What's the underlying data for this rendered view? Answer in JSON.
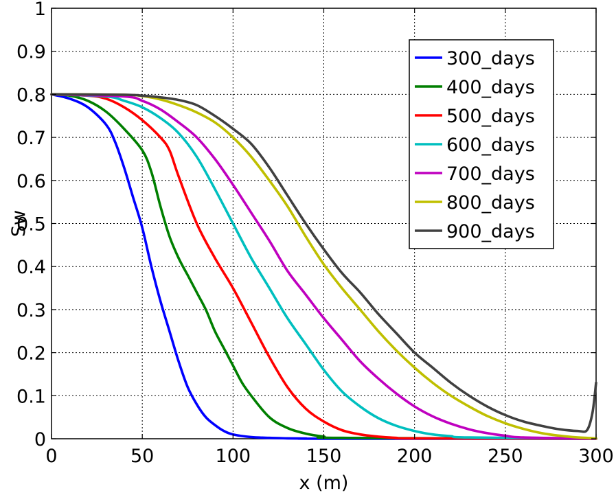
{
  "chart_data": {
    "type": "line",
    "title": "",
    "xlabel": "x (m)",
    "ylabel": "Sw",
    "xlim": [
      0,
      300
    ],
    "ylim": [
      0,
      1
    ],
    "xticks": [
      0,
      50,
      100,
      150,
      200,
      250,
      300
    ],
    "yticks": [
      0,
      0.1,
      0.2,
      0.3,
      0.4,
      0.5,
      0.6,
      0.7,
      0.8,
      0.9,
      1
    ],
    "xtick_labels": [
      "0",
      "50",
      "100",
      "150",
      "200",
      "250",
      "300"
    ],
    "ytick_labels": [
      "0",
      "0.1",
      "0.2",
      "0.3",
      "0.4",
      "0.5",
      "0.6",
      "0.7",
      "0.8",
      "0.9",
      "1"
    ],
    "grid": true,
    "legend_position": "top-right",
    "series": [
      {
        "name": "300_days",
        "color": "#0000ff",
        "x": [
          0,
          10,
          20,
          30,
          35,
          40,
          45,
          50,
          55,
          60,
          65,
          70,
          75,
          80,
          85,
          90,
          95,
          100,
          110,
          120,
          130,
          140,
          150,
          300
        ],
        "y": [
          0.8,
          0.79,
          0.77,
          0.73,
          0.69,
          0.63,
          0.56,
          0.49,
          0.4,
          0.32,
          0.25,
          0.18,
          0.12,
          0.08,
          0.05,
          0.032,
          0.018,
          0.01,
          0.004,
          0.002,
          0.001,
          0.0005,
          0.0002,
          0
        ]
      },
      {
        "name": "400_days",
        "color": "#007f00",
        "x": [
          0,
          10,
          20,
          30,
          40,
          50,
          55,
          60,
          65,
          70,
          75,
          80,
          85,
          90,
          95,
          100,
          105,
          110,
          120,
          130,
          140,
          150,
          160,
          300
        ],
        "y": [
          0.8,
          0.797,
          0.785,
          0.76,
          0.72,
          0.67,
          0.62,
          0.54,
          0.47,
          0.42,
          0.38,
          0.34,
          0.3,
          0.25,
          0.21,
          0.17,
          0.13,
          0.1,
          0.05,
          0.025,
          0.012,
          0.005,
          0.002,
          0
        ]
      },
      {
        "name": "500_days",
        "color": "#ff0000",
        "x": [
          0,
          20,
          30,
          40,
          50,
          60,
          65,
          70,
          80,
          90,
          100,
          110,
          120,
          130,
          140,
          150,
          160,
          170,
          180,
          190,
          200,
          300
        ],
        "y": [
          0.8,
          0.797,
          0.79,
          0.77,
          0.74,
          0.7,
          0.67,
          0.61,
          0.5,
          0.42,
          0.35,
          0.27,
          0.19,
          0.12,
          0.07,
          0.04,
          0.02,
          0.01,
          0.005,
          0.002,
          0.001,
          0
        ]
      },
      {
        "name": "600_days",
        "color": "#00bfbf",
        "x": [
          0,
          30,
          40,
          50,
          60,
          70,
          80,
          90,
          100,
          110,
          120,
          130,
          140,
          150,
          160,
          170,
          180,
          190,
          200,
          210,
          220,
          230,
          300
        ],
        "y": [
          0.8,
          0.795,
          0.785,
          0.77,
          0.745,
          0.71,
          0.655,
          0.58,
          0.5,
          0.42,
          0.35,
          0.28,
          0.22,
          0.16,
          0.11,
          0.075,
          0.048,
          0.03,
          0.018,
          0.01,
          0.006,
          0.003,
          0
        ]
      },
      {
        "name": "700_days",
        "color": "#bf00bf",
        "x": [
          0,
          40,
          50,
          60,
          70,
          80,
          90,
          100,
          110,
          120,
          130,
          140,
          150,
          160,
          170,
          180,
          190,
          200,
          210,
          220,
          230,
          240,
          250,
          260,
          300
        ],
        "y": [
          0.8,
          0.795,
          0.785,
          0.765,
          0.735,
          0.7,
          0.65,
          0.59,
          0.525,
          0.46,
          0.39,
          0.335,
          0.28,
          0.23,
          0.18,
          0.14,
          0.105,
          0.075,
          0.052,
          0.035,
          0.022,
          0.013,
          0.007,
          0.003,
          0
        ]
      },
      {
        "name": "800_days",
        "color": "#bfbf00",
        "x": [
          0,
          40,
          50,
          60,
          70,
          80,
          90,
          100,
          110,
          120,
          130,
          140,
          150,
          160,
          170,
          180,
          190,
          200,
          210,
          220,
          230,
          240,
          250,
          260,
          270,
          280,
          290,
          300
        ],
        "y": [
          0.8,
          0.799,
          0.796,
          0.788,
          0.775,
          0.758,
          0.735,
          0.7,
          0.655,
          0.6,
          0.54,
          0.47,
          0.405,
          0.35,
          0.3,
          0.25,
          0.205,
          0.165,
          0.13,
          0.1,
          0.075,
          0.053,
          0.036,
          0.023,
          0.013,
          0.007,
          0.003,
          0.001
        ]
      },
      {
        "name": "900_days",
        "color": "#404040",
        "x": [
          0,
          40,
          50,
          60,
          70,
          80,
          90,
          100,
          110,
          120,
          130,
          140,
          150,
          160,
          170,
          180,
          190,
          200,
          210,
          220,
          230,
          240,
          250,
          260,
          270,
          280,
          290,
          295,
          298,
          300
        ],
        "y": [
          0.8,
          0.799,
          0.797,
          0.793,
          0.787,
          0.775,
          0.75,
          0.72,
          0.685,
          0.63,
          0.565,
          0.5,
          0.44,
          0.385,
          0.34,
          0.29,
          0.245,
          0.2,
          0.165,
          0.13,
          0.1,
          0.075,
          0.055,
          0.04,
          0.03,
          0.022,
          0.018,
          0.02,
          0.06,
          0.13
        ]
      }
    ]
  }
}
